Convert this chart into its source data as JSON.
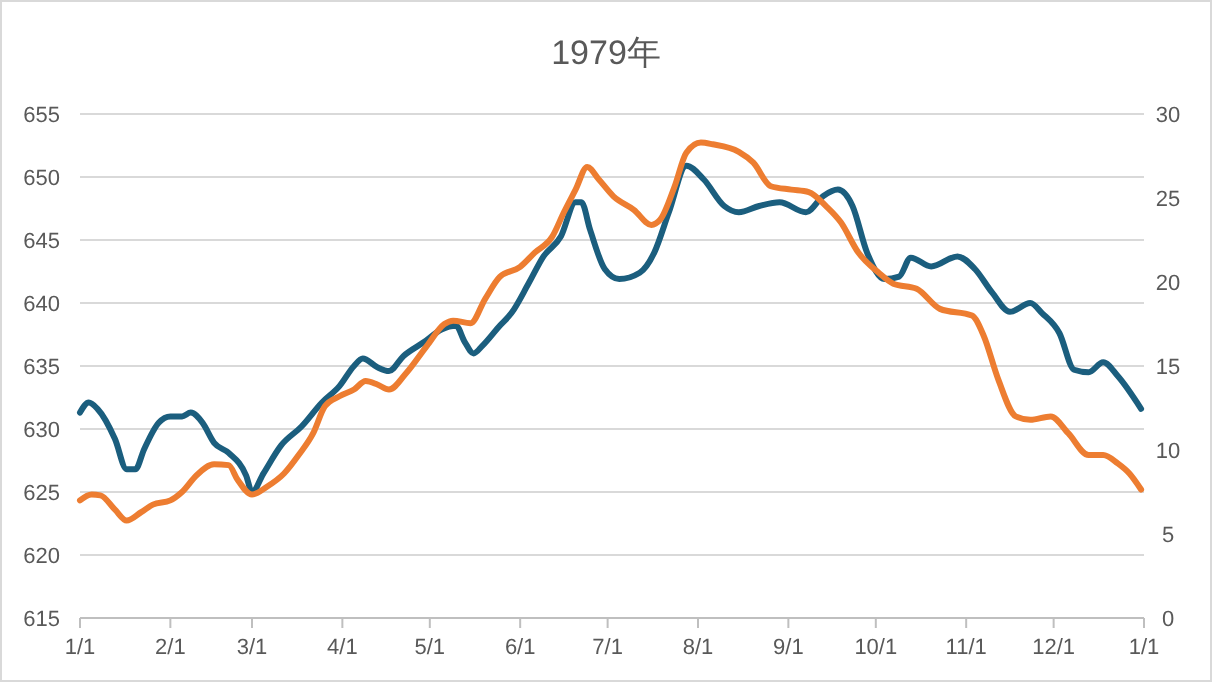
{
  "chart_data": {
    "type": "line",
    "title": "1979年",
    "xlim": [
      "1979-01-01",
      "1980-01-01"
    ],
    "xticks": [
      {
        "value": "1979-01-01",
        "label": "1/1"
      },
      {
        "value": "1979-02-01",
        "label": "2/1"
      },
      {
        "value": "1979-03-01",
        "label": "3/1"
      },
      {
        "value": "1979-04-01",
        "label": "4/1"
      },
      {
        "value": "1979-05-01",
        "label": "5/1"
      },
      {
        "value": "1979-06-01",
        "label": "6/1"
      },
      {
        "value": "1979-07-01",
        "label": "7/1"
      },
      {
        "value": "1979-08-01",
        "label": "8/1"
      },
      {
        "value": "1979-09-01",
        "label": "9/1"
      },
      {
        "value": "1979-10-01",
        "label": "10/1"
      },
      {
        "value": "1979-11-01",
        "label": "11/1"
      },
      {
        "value": "1979-12-01",
        "label": "12/1"
      },
      {
        "value": "1980-01-01",
        "label": "1/1"
      }
    ],
    "ylim": [
      615,
      655
    ],
    "yticks": [
      615,
      620,
      625,
      630,
      635,
      640,
      645,
      650,
      655
    ],
    "y2lim": [
      0,
      30
    ],
    "y2ticks": [
      0,
      5,
      10,
      15,
      20,
      25,
      30
    ],
    "grid": "y",
    "line_style": "solid",
    "series": [
      {
        "color": "#1b5e7e",
        "axis": "y",
        "x": [
          "1979-01-01",
          "1979-01-04",
          "1979-01-07",
          "1979-01-13",
          "1979-01-17",
          "1979-01-20",
          "1979-01-23",
          "1979-01-28",
          "1979-02-01",
          "1979-02-05",
          "1979-02-08",
          "1979-02-12",
          "1979-02-16",
          "1979-02-21",
          "1979-02-27",
          "1979-03-01",
          "1979-03-05",
          "1979-03-11",
          "1979-03-18",
          "1979-03-25",
          "1979-03-31",
          "1979-04-05",
          "1979-04-08",
          "1979-04-13",
          "1979-04-17",
          "1979-04-22",
          "1979-04-29",
          "1979-05-05",
          "1979-05-10",
          "1979-05-13",
          "1979-05-16",
          "1979-05-19",
          "1979-05-25",
          "1979-05-29",
          "1979-06-04",
          "1979-06-09",
          "1979-06-15",
          "1979-06-20",
          "1979-06-22",
          "1979-06-25",
          "1979-06-30",
          "1979-07-05",
          "1979-07-12",
          "1979-07-17",
          "1979-07-22",
          "1979-07-28",
          "1979-08-03",
          "1979-08-10",
          "1979-08-15",
          "1979-08-22",
          "1979-08-29",
          "1979-09-07",
          "1979-09-13",
          "1979-09-18",
          "1979-09-23",
          "1979-09-28",
          "1979-10-04",
          "1979-10-09",
          "1979-10-13",
          "1979-10-20",
          "1979-10-29",
          "1979-11-04",
          "1979-11-10",
          "1979-11-16",
          "1979-11-23",
          "1979-11-27",
          "1979-12-03",
          "1979-12-08",
          "1979-12-13",
          "1979-12-18",
          "1979-12-23",
          "1979-12-31"
        ],
        "values": [
          631.3,
          632.1,
          631.6,
          629.2,
          626.8,
          626.8,
          628.4,
          630.5,
          631.0,
          631.0,
          631.3,
          630.5,
          628.9,
          628.1,
          626.3,
          625.0,
          626.5,
          628.7,
          630.2,
          632.1,
          633.4,
          635.0,
          635.6,
          634.9,
          634.6,
          635.8,
          636.9,
          637.9,
          638.2,
          636.9,
          636.0,
          636.6,
          638.2,
          639.2,
          641.6,
          643.7,
          645.3,
          648.0,
          648.0,
          645.8,
          642.7,
          641.9,
          642.4,
          644.0,
          647.2,
          650.9,
          649.8,
          647.7,
          647.2,
          647.7,
          648.0,
          647.2,
          648.5,
          649.0,
          647.7,
          644.0,
          641.9,
          642.1,
          643.6,
          642.9,
          643.7,
          642.7,
          640.8,
          639.3,
          640.0,
          639.2,
          637.6,
          634.7,
          634.5,
          635.3,
          634.2,
          631.6
        ]
      },
      {
        "color": "#ed7d31",
        "axis": "y2",
        "x": [
          "1979-01-01",
          "1979-01-05",
          "1979-01-08",
          "1979-01-13",
          "1979-01-17",
          "1979-01-22",
          "1979-01-26",
          "1979-02-01",
          "1979-02-05",
          "1979-02-10",
          "1979-02-16",
          "1979-02-21",
          "1979-02-24",
          "1979-03-01",
          "1979-03-06",
          "1979-03-12",
          "1979-03-17",
          "1979-03-22",
          "1979-03-26",
          "1979-03-31",
          "1979-04-05",
          "1979-04-09",
          "1979-04-13",
          "1979-04-17",
          "1979-04-23",
          "1979-04-30",
          "1979-05-06",
          "1979-05-09",
          "1979-05-15",
          "1979-05-20",
          "1979-05-25",
          "1979-06-01",
          "1979-06-06",
          "1979-06-12",
          "1979-06-16",
          "1979-06-20",
          "1979-06-24",
          "1979-06-28",
          "1979-07-03",
          "1979-07-10",
          "1979-07-16",
          "1979-07-19",
          "1979-07-24",
          "1979-07-28",
          "1979-08-02",
          "1979-08-06",
          "1979-08-15",
          "1979-08-20",
          "1979-08-26",
          "1979-09-02",
          "1979-09-08",
          "1979-09-14",
          "1979-09-19",
          "1979-09-25",
          "1979-10-02",
          "1979-10-07",
          "1979-10-15",
          "1979-10-23",
          "1979-11-03",
          "1979-11-07",
          "1979-11-12",
          "1979-11-18",
          "1979-11-23",
          "1979-11-30",
          "1979-12-06",
          "1979-12-13",
          "1979-12-18",
          "1979-12-23",
          "1979-12-27",
          "1979-12-31"
        ],
        "values": [
          7.0,
          7.35,
          7.3,
          6.45,
          5.8,
          6.3,
          6.75,
          7.0,
          7.5,
          8.5,
          9.15,
          9.1,
          8.25,
          7.35,
          7.8,
          8.6,
          9.7,
          11.0,
          12.6,
          13.2,
          13.6,
          14.1,
          13.9,
          13.6,
          14.6,
          16.2,
          17.5,
          17.7,
          17.55,
          19.0,
          20.3,
          20.9,
          21.75,
          22.7,
          24.15,
          25.5,
          26.85,
          26.1,
          25.1,
          24.3,
          23.4,
          23.7,
          25.7,
          27.7,
          28.3,
          28.2,
          27.75,
          27.1,
          25.7,
          25.5,
          25.35,
          24.5,
          23.55,
          21.75,
          20.55,
          19.9,
          19.6,
          18.4,
          18.0,
          16.8,
          14.2,
          12.0,
          11.8,
          12.0,
          11.0,
          9.7,
          9.7,
          9.2,
          8.6,
          7.65
        ]
      }
    ]
  }
}
